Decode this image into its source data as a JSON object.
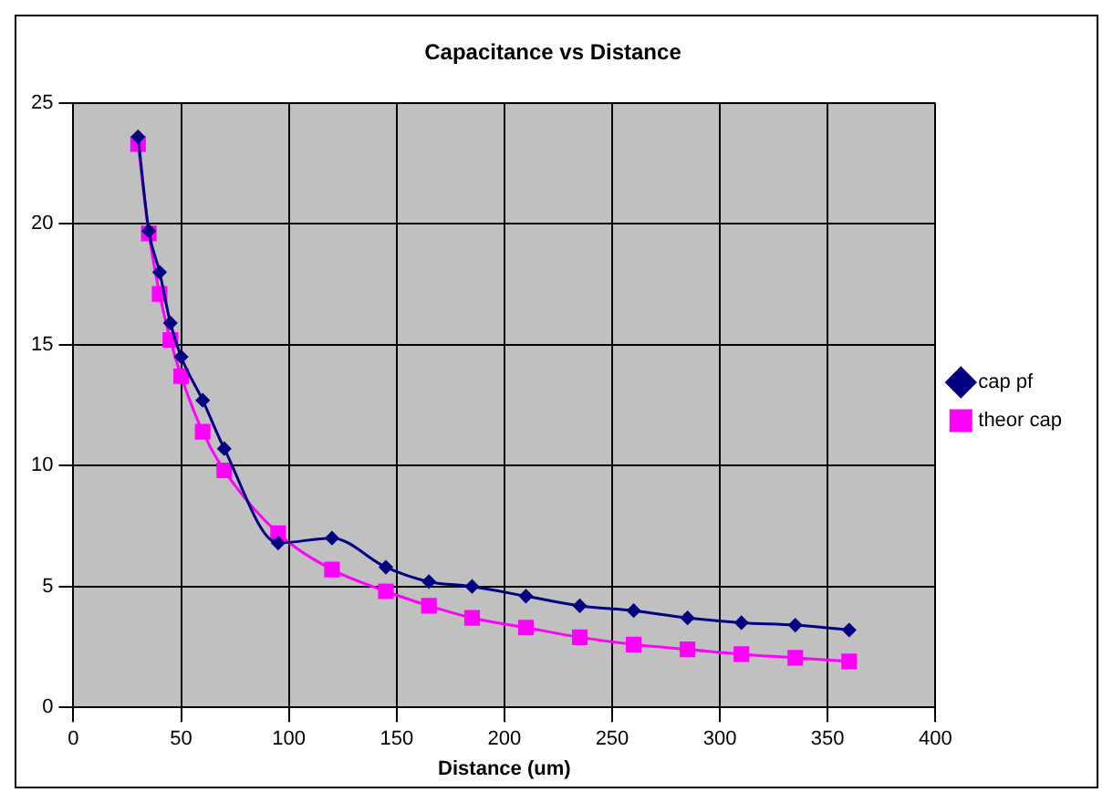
{
  "chart_data": {
    "type": "line",
    "title": "Capacitance vs Distance",
    "xlabel": "Distance (um)",
    "x": [
      30,
      35,
      40,
      45,
      50,
      60,
      70,
      95,
      120,
      145,
      165,
      185,
      210,
      235,
      260,
      285,
      310,
      335,
      360
    ],
    "series": [
      {
        "name": "cap pf",
        "color": "#000080",
        "marker": "diamond",
        "values": [
          23.6,
          19.7,
          18.0,
          15.9,
          14.5,
          12.7,
          10.7,
          6.8,
          7.0,
          5.8,
          5.2,
          5.0,
          4.6,
          4.2,
          4.0,
          3.7,
          3.5,
          3.4,
          3.2
        ]
      },
      {
        "name": "theor cap",
        "color": "#ff00ff",
        "marker": "square",
        "values": [
          23.3,
          19.6,
          17.1,
          15.2,
          13.7,
          11.4,
          9.8,
          7.2,
          5.7,
          4.8,
          4.2,
          3.7,
          3.3,
          2.9,
          2.6,
          2.4,
          2.2,
          2.05,
          1.9
        ]
      }
    ],
    "xlim": [
      0,
      400
    ],
    "xticks": [
      0,
      50,
      100,
      150,
      200,
      250,
      300,
      350,
      400
    ],
    "ylim": [
      0,
      25
    ],
    "yticks": [
      0,
      5,
      10,
      15,
      20,
      25
    ],
    "grid": true,
    "legend": "right",
    "line_style": "solid"
  }
}
